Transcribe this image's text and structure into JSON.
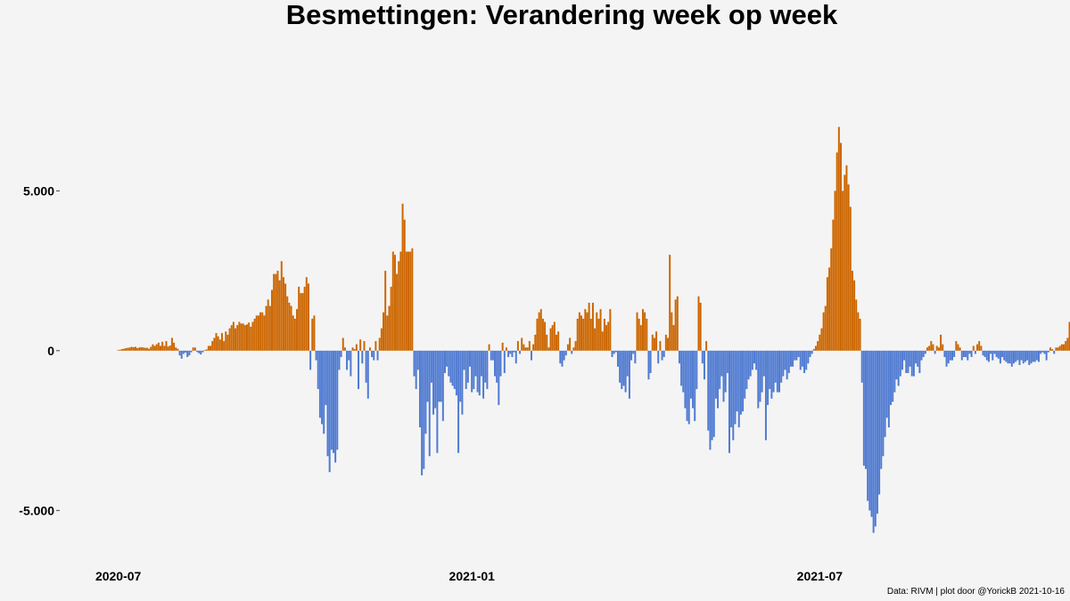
{
  "chart_data": {
    "type": "bar",
    "title": "Besmettingen: Verandering week op week",
    "xlabel": "",
    "ylabel": "",
    "x_range": [
      "2020-06-01",
      "2021-10-16"
    ],
    "ylim": [
      -6300,
      9300
    ],
    "y_ticks": [
      {
        "value": 5000,
        "label": "5.000"
      },
      {
        "value": 0,
        "label": "0"
      },
      {
        "value": -5000,
        "label": "-5.000"
      }
    ],
    "x_ticks": [
      {
        "date": "2020-07-01",
        "label": "2020-07"
      },
      {
        "date": "2021-01-01",
        "label": "2021-01"
      },
      {
        "date": "2021-07-01",
        "label": "2021-07"
      }
    ],
    "grid": false,
    "legend": "none",
    "colors": {
      "increase": "#cc6600",
      "decrease": "#4f7ad1",
      "background": "#f4f4f4"
    },
    "caption": "Data: RIVM | plot door @YorickB  2021-10-16",
    "start_date": "2020-07-01",
    "values": [
      20,
      30,
      50,
      60,
      80,
      90,
      100,
      120,
      110,
      120,
      80,
      100,
      110,
      100,
      90,
      90,
      60,
      120,
      200,
      150,
      200,
      250,
      150,
      280,
      150,
      300,
      130,
      160,
      400,
      250,
      100,
      60,
      -150,
      -250,
      -100,
      -60,
      -200,
      -150,
      -50,
      100,
      100,
      -40,
      -80,
      -120,
      -50,
      20,
      40,
      150,
      150,
      300,
      400,
      550,
      450,
      350,
      550,
      300,
      600,
      500,
      700,
      800,
      900,
      700,
      800,
      900,
      850,
      850,
      800,
      820,
      880,
      750,
      900,
      1000,
      1100,
      1100,
      1200,
      1200,
      1100,
      1400,
      1600,
      1400,
      1900,
      2400,
      2400,
      2500,
      2200,
      2800,
      2300,
      2100,
      1700,
      1500,
      1400,
      1100,
      1000,
      1300,
      2000,
      1800,
      1800,
      2000,
      2300,
      2100,
      -600,
      1000,
      1100,
      -300,
      -1200,
      -2100,
      -2300,
      -2600,
      -1700,
      -3300,
      -3800,
      -3100,
      -3200,
      -3500,
      -3100,
      -600,
      -200,
      400,
      100,
      -600,
      -300,
      -800,
      100,
      50,
      200,
      -1200,
      350,
      -400,
      300,
      -1000,
      -1500,
      100,
      -200,
      -300,
      300,
      -300,
      400,
      700,
      1200,
      2500,
      1100,
      1400,
      2000,
      3100,
      3000,
      2400,
      2800,
      3100,
      4600,
      4100,
      3100,
      3100,
      3100,
      3200,
      -800,
      -1200,
      -600,
      -2400,
      -3900,
      -3700,
      -2600,
      -1600,
      -3300,
      -1000,
      -2000,
      -1800,
      -3200,
      -1600,
      -1600,
      -2200,
      -700,
      -500,
      -800,
      -1000,
      -1100,
      -1200,
      -1400,
      -3200,
      -1600,
      -2000,
      -600,
      -1200,
      -1000,
      -500,
      -1300,
      -1200,
      -800,
      -1300,
      -1400,
      -800,
      -1500,
      -1000,
      -1200,
      200,
      -300,
      -300,
      -800,
      -1000,
      -1700,
      -800,
      250,
      -700,
      100,
      -200,
      -100,
      -200,
      -50,
      -400,
      300,
      -100,
      400,
      200,
      100,
      100,
      300,
      -300,
      200,
      500,
      1000,
      1200,
      1300,
      1000,
      900,
      500,
      100,
      700,
      800,
      900,
      500,
      600,
      -400,
      -500,
      -300,
      -150,
      200,
      400,
      -100,
      100,
      300,
      1000,
      1200,
      1100,
      1000,
      1300,
      1200,
      1500,
      1000,
      1500,
      700,
      1200,
      1000,
      1300,
      600,
      1000,
      800,
      900,
      1300,
      -200,
      -100,
      -50,
      -500,
      -1000,
      -1200,
      -1100,
      -1300,
      -800,
      -1500,
      -300,
      -100,
      -400,
      1200,
      1000,
      800,
      1300,
      1200,
      1000,
      -900,
      -700,
      500,
      400,
      600,
      -400,
      300,
      -300,
      -200,
      500,
      400,
      3000,
      1200,
      800,
      1600,
      1700,
      -400,
      -1100,
      -1300,
      -1800,
      -2200,
      -2300,
      -1500,
      -1800,
      -2200,
      -1200,
      1700,
      1500,
      -400,
      -900,
      300,
      -2500,
      -3100,
      -2800,
      -2700,
      -1500,
      -1800,
      -1200,
      -800,
      -1600,
      -1300,
      -700,
      -3200,
      -2400,
      -2800,
      -2300,
      -1900,
      -2400,
      -2000,
      -1900,
      -1500,
      -1200,
      -900,
      -800,
      -600,
      -400,
      -600,
      -1800,
      -1600,
      -1300,
      -800,
      -2800,
      -1700,
      -1200,
      -1500,
      -1300,
      -1000,
      -1300,
      -1300,
      -1000,
      -800,
      -600,
      -900,
      -700,
      -500,
      -500,
      -300,
      -300,
      -200,
      -600,
      -500,
      -700,
      -600,
      -400,
      -200,
      -100,
      50,
      150,
      300,
      500,
      700,
      1200,
      1400,
      2300,
      2600,
      3200,
      4100,
      5000,
      6200,
      7000,
      6500,
      5000,
      5500,
      5800,
      5200,
      4500,
      2500,
      2200,
      1600,
      1200,
      1000,
      -1000,
      -3600,
      -3700,
      -4700,
      -5000,
      -5200,
      -5700,
      -5500,
      -5100,
      -4500,
      -3700,
      -3300,
      -2700,
      -2100,
      -2400,
      -1700,
      -1600,
      -1300,
      -900,
      -1100,
      -800,
      -600,
      -300,
      -700,
      -700,
      -500,
      -800,
      -800,
      -400,
      -500,
      -700,
      -300,
      -200,
      -100,
      100,
      150,
      300,
      200,
      -100,
      150,
      100,
      500,
      200,
      -200,
      -500,
      -400,
      -300,
      -300,
      -200,
      300,
      200,
      100,
      -300,
      -200,
      -200,
      -300,
      -100,
      -200,
      150,
      -100,
      200,
      300,
      150,
      -150,
      -200,
      -300,
      -350,
      -100,
      -300,
      -100,
      -200,
      -250,
      -400,
      -200,
      -300,
      -350,
      -400,
      -400,
      -500,
      -400,
      -350,
      -300,
      -450,
      -300,
      -400,
      -350,
      -300,
      -450,
      -400,
      -350,
      -350,
      -300,
      -350,
      -100,
      -50,
      -100,
      -300,
      -50,
      100,
      50,
      -100,
      100,
      100,
      150,
      200,
      200,
      300,
      400,
      900,
      1000,
      1100,
      900,
      800,
      1000,
      1200,
      1100,
      1000,
      900,
      1100,
      1300,
      1800,
      1200,
      900,
      1000,
      1100,
      1300
    ]
  }
}
